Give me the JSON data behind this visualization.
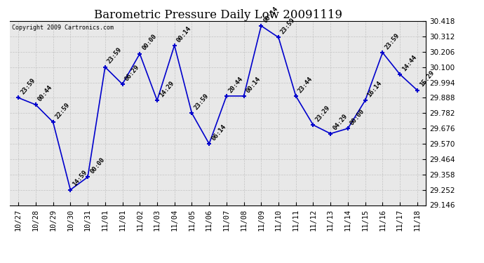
{
  "title": "Barometric Pressure Daily Low 20091119",
  "copyright": "Copyright 2009 Cartronics.com",
  "line_color": "#0000cc",
  "marker_color": "#0000cc",
  "bg_color": "#ffffff",
  "grid_color": "#bbbbbb",
  "text_color": "#000000",
  "ylim": [
    29.146,
    30.418
  ],
  "yticks": [
    29.146,
    29.252,
    29.358,
    29.464,
    29.57,
    29.676,
    29.782,
    29.888,
    29.994,
    30.1,
    30.206,
    30.312,
    30.418
  ],
  "x_labels": [
    "10/27",
    "10/28",
    "10/29",
    "10/30",
    "10/31",
    "11/01",
    "11/01",
    "11/02",
    "11/03",
    "11/04",
    "11/05",
    "11/06",
    "11/07",
    "11/08",
    "11/09",
    "11/10",
    "11/11",
    "11/12",
    "11/13",
    "11/14",
    "11/15",
    "11/16",
    "11/17",
    "11/18"
  ],
  "x_indices": [
    0,
    1,
    2,
    3,
    4,
    5,
    6,
    7,
    8,
    9,
    10,
    11,
    12,
    13,
    14,
    15,
    16,
    17,
    18,
    19,
    20,
    21,
    22,
    23
  ],
  "values": [
    29.888,
    29.84,
    29.72,
    29.252,
    29.34,
    30.1,
    29.982,
    30.192,
    29.87,
    30.25,
    29.782,
    29.57,
    29.9,
    29.9,
    30.385,
    30.305,
    29.9,
    29.7,
    29.64,
    29.676,
    29.87,
    30.2,
    30.05,
    29.94
  ],
  "annotations": [
    "23:59",
    "00:44",
    "22:59",
    "14:59",
    "00:00",
    "23:59",
    "06:29",
    "00:00",
    "14:29",
    "00:14",
    "23:59",
    "06:14",
    "20:44",
    "00:14",
    "00:14",
    "23:59",
    "23:44",
    "23:29",
    "04:29",
    "00:00",
    "16:14",
    "23:59",
    "14:44",
    "15:29"
  ],
  "title_fontsize": 12,
  "axis_fontsize": 7.5,
  "annotation_fontsize": 6.5
}
